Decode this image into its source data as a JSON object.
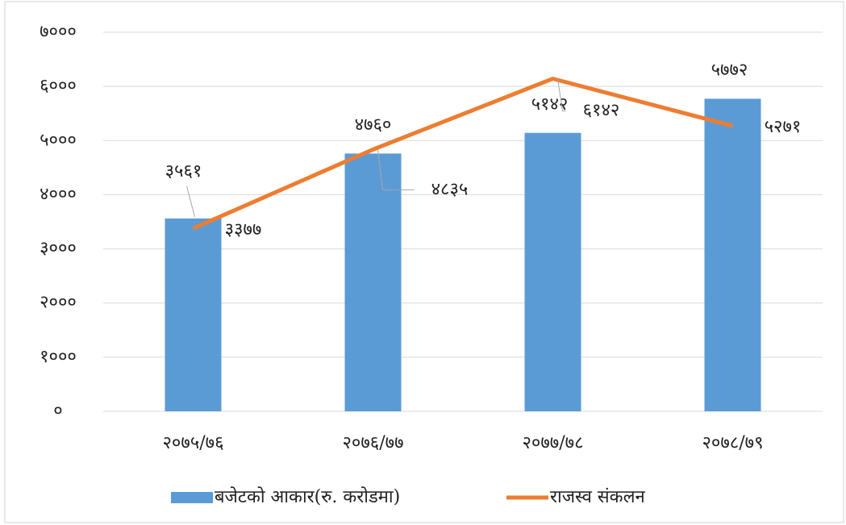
{
  "chart_data": {
    "type": "bar_line",
    "categories": [
      "२०७५/७६",
      "२०७६/७७",
      "२०७७/७८",
      "२०७८/७९"
    ],
    "series": [
      {
        "name": "बजेटको आकार(रु. करोडमा)",
        "type": "bar",
        "color": "#5b9bd5",
        "values": [
          3561,
          4760,
          5142,
          5772
        ],
        "value_labels": [
          "३५६१",
          "४७६०",
          "५१४२",
          "५७७२"
        ]
      },
      {
        "name": "राजस्व संकलन",
        "type": "line",
        "color": "#ed7d31",
        "values": [
          3377,
          4835,
          6142,
          5271
        ],
        "value_labels": [
          "३३७७",
          "४८३५",
          "६१४२",
          "५२७१"
        ]
      }
    ],
    "ylim": [
      0,
      7000
    ],
    "yticks": [
      {
        "value": 0,
        "label": "०"
      },
      {
        "value": 1000,
        "label": "१०००"
      },
      {
        "value": 2000,
        "label": "२०००"
      },
      {
        "value": 3000,
        "label": "३०००"
      },
      {
        "value": 4000,
        "label": "४०००"
      },
      {
        "value": 5000,
        "label": "५०००"
      },
      {
        "value": 6000,
        "label": "६०००"
      },
      {
        "value": 7000,
        "label": "७०००"
      }
    ],
    "grid": true,
    "legend": "bottom"
  }
}
